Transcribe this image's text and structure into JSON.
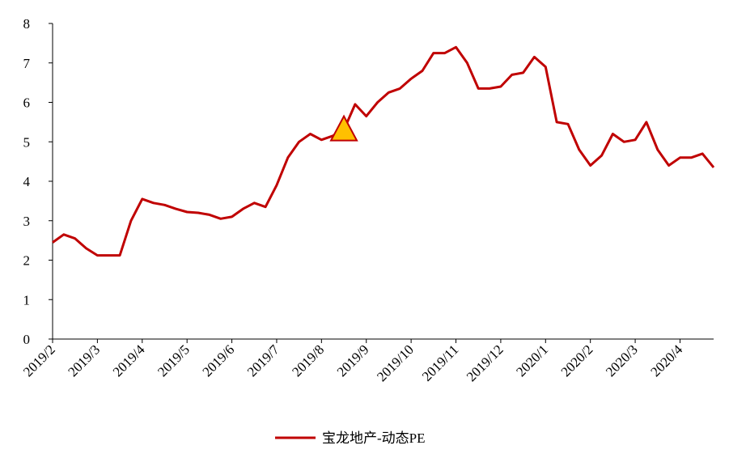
{
  "chart_data": {
    "type": "line",
    "categories": [
      "2019/2",
      null,
      null,
      null,
      "2019/3",
      null,
      null,
      null,
      "2019/4",
      null,
      null,
      null,
      "2019/5",
      null,
      null,
      null,
      "2019/6",
      null,
      null,
      null,
      "2019/7",
      null,
      null,
      null,
      "2019/8",
      null,
      null,
      null,
      "2019/9",
      null,
      null,
      null,
      "2019/10",
      null,
      null,
      null,
      "2019/11",
      null,
      null,
      null,
      "2019/12",
      null,
      null,
      null,
      "2020/1",
      null,
      null,
      null,
      "2020/2",
      null,
      null,
      null,
      "2020/3",
      null,
      null,
      null,
      "2020/4",
      null,
      null,
      null
    ],
    "series": [
      {
        "name": "宝龙地产-动态PE",
        "color": "#c00000",
        "values": [
          2.45,
          2.65,
          2.55,
          2.3,
          2.12,
          2.12,
          2.12,
          3.0,
          3.55,
          3.45,
          3.4,
          3.3,
          3.22,
          3.2,
          3.15,
          3.05,
          3.1,
          3.3,
          3.45,
          3.35,
          3.9,
          4.6,
          5.0,
          5.2,
          5.05,
          5.15,
          5.3,
          5.95,
          5.65,
          6.0,
          6.25,
          6.35,
          6.6,
          6.8,
          7.25,
          7.25,
          7.4,
          7.0,
          6.35,
          6.35,
          6.4,
          6.7,
          6.75,
          7.15,
          6.9,
          5.5,
          5.45,
          4.8,
          4.4,
          4.65,
          5.2,
          5.0,
          5.05,
          5.5,
          4.8,
          4.4,
          4.6,
          4.6,
          4.7,
          4.35
        ]
      },
      {
        "color": "#ffc000",
        "marker": "triangle",
        "values": [
          null,
          null,
          null,
          null,
          null,
          null,
          null,
          null,
          null,
          null,
          null,
          null,
          null,
          null,
          null,
          null,
          null,
          null,
          null,
          null,
          null,
          null,
          null,
          null,
          null,
          null,
          5.3,
          null,
          null,
          null,
          null,
          null,
          null,
          null,
          null,
          null,
          null,
          null,
          null,
          null,
          null,
          null,
          null,
          null,
          null,
          null,
          null,
          null,
          null,
          null,
          null,
          null,
          null,
          null,
          null,
          null,
          null,
          null,
          null,
          null
        ]
      }
    ],
    "ylim": [
      0,
      8
    ],
    "yticks": [
      0,
      1,
      2,
      3,
      4,
      5,
      6,
      7,
      8
    ]
  }
}
